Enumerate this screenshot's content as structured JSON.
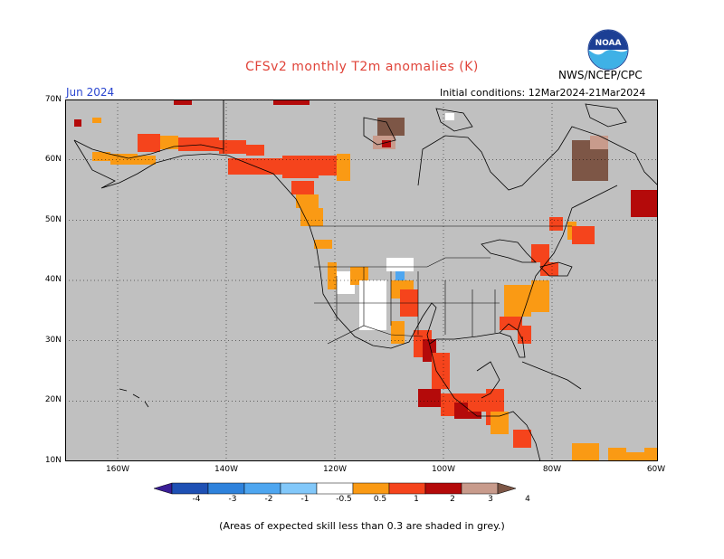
{
  "title": "CFSv2 monthly T2m anomalies (K)",
  "month": "Jun 2024",
  "org": "NWS/NCEP/CPC",
  "init": "Initial conditions: 12Mar2024-21Mar2024",
  "logo_text": "NOAA",
  "note": "(Areas of expected skill less than 0.3 are shaded in grey.)",
  "lat_labels": [
    "70N",
    "60N",
    "50N",
    "40N",
    "30N",
    "20N",
    "10N"
  ],
  "lon_labels": [
    "160W",
    "140W",
    "120W",
    "100W",
    "80W",
    "60W"
  ],
  "colorbar": {
    "labels": [
      "-4",
      "-3",
      "-2",
      "-1",
      "-0.5",
      "0.5",
      "1",
      "2",
      "3",
      "4"
    ],
    "colors": [
      "#3a1e96",
      "#1e50b4",
      "#2e82dc",
      "#4ea6f0",
      "#82c8fa",
      "#ffffff",
      "#fa9a14",
      "#f5441c",
      "#b40a0a",
      "#c89b8c",
      "#7d5646"
    ]
  },
  "colors": {
    "land_grey": "#c0c0c0",
    "white": "#ffffff"
  }
}
